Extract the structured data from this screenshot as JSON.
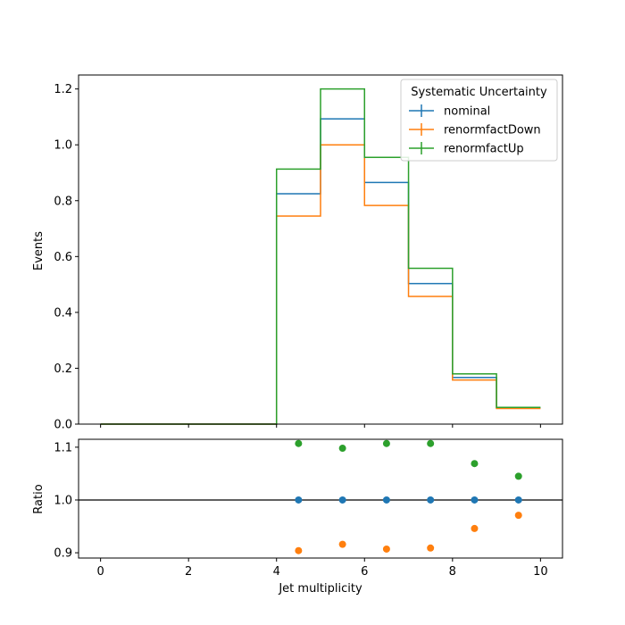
{
  "chart_data": [
    {
      "type": "step",
      "ylabel": "Events",
      "xlim": [
        -0.5,
        10.5
      ],
      "ylim": [
        0,
        1.25
      ],
      "bin_edges": [
        0,
        1,
        2,
        3,
        4,
        5,
        6,
        7,
        8,
        9,
        10
      ],
      "yticks": [
        "0.0",
        "0.2",
        "0.4",
        "0.6",
        "0.8",
        "1.0",
        "1.2"
      ],
      "ytick_values": [
        0,
        0.2,
        0.4,
        0.6,
        0.8,
        1.0,
        1.2
      ],
      "legend": {
        "title": "Systematic Uncertainty",
        "placement": "top-right"
      },
      "series": [
        {
          "name": "nominal",
          "color": "#1f77b4",
          "values": [
            0,
            0,
            0,
            0,
            0.825,
            1.093,
            0.865,
            0.503,
            0.167,
            0.058
          ]
        },
        {
          "name": "renormfactDown",
          "color": "#ff7f0e",
          "values": [
            0,
            0,
            0,
            0,
            0.745,
            1.0,
            0.783,
            0.457,
            0.158,
            0.056
          ]
        },
        {
          "name": "renormfactUp",
          "color": "#2ca02c",
          "values": [
            0,
            0,
            0,
            0,
            0.913,
            1.2,
            0.955,
            0.558,
            0.18,
            0.06
          ]
        }
      ]
    },
    {
      "type": "scatter",
      "xlabel": "Jet multiplicity",
      "ylabel": "Ratio",
      "xlim": [
        -0.5,
        10.5
      ],
      "ylim": [
        0.89,
        1.115
      ],
      "xticks": [
        "0",
        "2",
        "4",
        "6",
        "8",
        "10"
      ],
      "xtick_values": [
        0,
        2,
        4,
        6,
        8,
        10
      ],
      "yticks": [
        "0.9",
        "1.0",
        "1.1"
      ],
      "ytick_values": [
        0.9,
        1.0,
        1.1
      ],
      "reference_line": 1.0,
      "x": [
        4.5,
        5.5,
        6.5,
        7.5,
        8.5,
        9.5
      ],
      "series": [
        {
          "name": "nominal",
          "color": "#1f77b4",
          "values": [
            1.0,
            1.0,
            1.0,
            1.0,
            1.0,
            1.0
          ]
        },
        {
          "name": "renormfactDown",
          "color": "#ff7f0e",
          "values": [
            0.904,
            0.916,
            0.907,
            0.909,
            0.946,
            0.971
          ]
        },
        {
          "name": "renormfactUp",
          "color": "#2ca02c",
          "values": [
            1.107,
            1.098,
            1.107,
            1.107,
            1.069,
            1.045
          ]
        }
      ]
    }
  ]
}
